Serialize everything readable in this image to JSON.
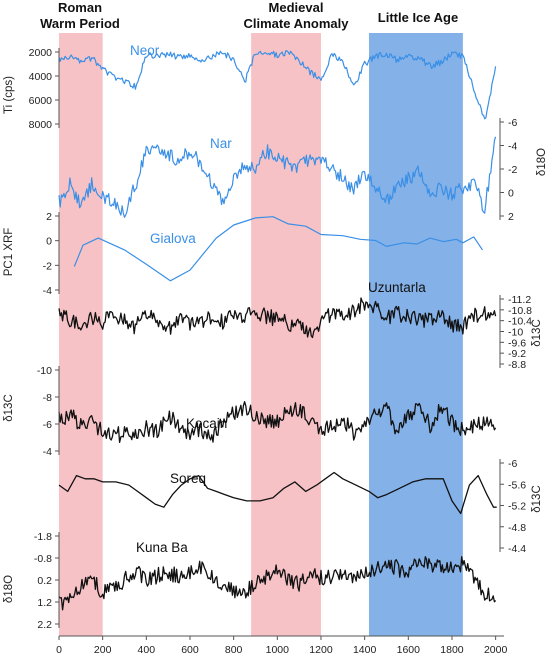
{
  "chart_data": {
    "type": "line",
    "periods": [
      {
        "name": "Roman Warm Period",
        "title_lines": [
          "Roman",
          "Warm Period"
        ],
        "start": 0,
        "end": 200,
        "color": "#f7c2c6"
      },
      {
        "name": "Medieval Climate Anomaly",
        "title_lines": [
          "Medieval",
          "Climate Anomaly"
        ],
        "start": 880,
        "end": 1200,
        "color": "#f7c2c6"
      },
      {
        "name": "Little Ice Age",
        "title_lines": [
          "Little Ice Age"
        ],
        "start": 1420,
        "end": 1850,
        "color": "#6fa3e3"
      }
    ],
    "x": {
      "ticks": [
        0,
        200,
        400,
        600,
        800,
        1000,
        1200,
        1400,
        1600,
        1800,
        2000
      ],
      "range": [
        0,
        2020
      ]
    },
    "series": [
      {
        "name": "Neor",
        "label": "Neor",
        "color": "#3a8fe6",
        "axis_title": "Ti (cps)",
        "axis_side": "left",
        "ticks": [
          "2000",
          "4000",
          "6000",
          "8000"
        ],
        "range": [
          1000,
          9600
        ],
        "inverted": true,
        "x": [
          0,
          50,
          100,
          150,
          200,
          250,
          300,
          350,
          400,
          450,
          500,
          550,
          600,
          650,
          700,
          750,
          800,
          850,
          900,
          950,
          1000,
          1050,
          1100,
          1150,
          1200,
          1250,
          1300,
          1350,
          1400,
          1450,
          1500,
          1550,
          1600,
          1650,
          1700,
          1750,
          1800,
          1850,
          1900,
          1950,
          2000
        ],
        "y": [
          2600,
          2200,
          2800,
          2400,
          3400,
          4300,
          4700,
          5200,
          2100,
          2200,
          2000,
          2300,
          2100,
          2700,
          2200,
          1900,
          2500,
          4800,
          1900,
          1700,
          2100,
          1800,
          2600,
          3800,
          4500,
          2000,
          2600,
          5200,
          3000,
          2200,
          2000,
          2600,
          2200,
          2400,
          3200,
          2800,
          2000,
          2200,
          5400,
          8600,
          3200
        ],
        "noise": 300
      },
      {
        "name": "Nar",
        "label": "Nar",
        "color": "#3a8fe6",
        "axis_title": "δ18O",
        "axis_side": "right",
        "ticks": [
          "-6",
          "-4",
          "-2",
          "0",
          "2"
        ],
        "range": [
          -6.5,
          2.5
        ],
        "inverted": true,
        "x": [
          0,
          50,
          100,
          150,
          200,
          250,
          300,
          350,
          400,
          450,
          500,
          550,
          600,
          650,
          700,
          750,
          800,
          850,
          900,
          950,
          1000,
          1050,
          1100,
          1150,
          1200,
          1250,
          1300,
          1350,
          1400,
          1450,
          1500,
          1550,
          1600,
          1650,
          1700,
          1750,
          1800,
          1850,
          1900,
          1950,
          2000
        ],
        "y": [
          0.8,
          -0.8,
          1.2,
          -0.8,
          0.2,
          1.0,
          1.6,
          -0.6,
          -3.6,
          -4.2,
          -3.2,
          -2.8,
          -3.6,
          -2.6,
          -0.8,
          0.6,
          -1.2,
          -2.4,
          -2.0,
          -3.6,
          -3.0,
          -2.4,
          -2.2,
          -3.0,
          -2.6,
          -2.2,
          -1.2,
          -0.4,
          -1.6,
          -0.6,
          0.8,
          -0.6,
          -1.2,
          -1.8,
          0.0,
          -0.4,
          0.2,
          -0.4,
          -0.8,
          1.4,
          -4.8
        ],
        "noise": 0.6
      },
      {
        "name": "Gialova",
        "label": "Gialova",
        "color": "#3a8fe6",
        "axis_title": "PC1 XRF",
        "axis_side": "left",
        "ticks": [
          "2",
          "0",
          "-2",
          "-4"
        ],
        "range": [
          -4.4,
          2.6
        ],
        "inverted": false,
        "x": [
          70,
          110,
          180,
          300,
          400,
          510,
          600,
          720,
          800,
          900,
          980,
          1050,
          1130,
          1200,
          1300,
          1380,
          1450,
          1500,
          1580,
          1640,
          1700,
          1760,
          1820,
          1850,
          1900,
          1940
        ],
        "y": [
          -2.0,
          -0.2,
          0.4,
          -0.6,
          -1.8,
          -3.2,
          -2.3,
          0.4,
          1.5,
          2.1,
          2.2,
          1.6,
          1.4,
          0.7,
          0.6,
          0.3,
          0.2,
          -0.3,
          0.0,
          -0.1,
          0.4,
          0.1,
          0.3,
          0.0,
          0.5,
          -0.6
        ],
        "noise": 0
      },
      {
        "name": "Uzuntarla",
        "label": "Uzuntarla",
        "color": "#111111",
        "axis_title": "δ13C",
        "axis_side": "right",
        "ticks": [
          "-11.2",
          "-10.8",
          "-10.4",
          "-10",
          "-9.6",
          "-9.2",
          "-8.8"
        ],
        "range": [
          -11.5,
          -8.6
        ],
        "inverted": true,
        "x": [
          0,
          50,
          100,
          150,
          200,
          250,
          300,
          350,
          400,
          450,
          500,
          550,
          600,
          650,
          700,
          750,
          800,
          850,
          900,
          950,
          1000,
          1050,
          1100,
          1150,
          1200,
          1250,
          1300,
          1350,
          1400,
          1450,
          1500,
          1550,
          1600,
          1650,
          1700,
          1750,
          1800,
          1850,
          1900,
          1950,
          2000
        ],
        "y": [
          -10.5,
          -10.4,
          -10.2,
          -10.4,
          -10.3,
          -10.5,
          -10.3,
          -10.1,
          -10.6,
          -10.3,
          -10.0,
          -10.5,
          -10.2,
          -10.3,
          -10.4,
          -10.3,
          -10.6,
          -10.5,
          -10.7,
          -10.5,
          -10.4,
          -10.2,
          -10.1,
          -9.8,
          -10.3,
          -10.6,
          -10.5,
          -10.7,
          -11.0,
          -10.8,
          -10.4,
          -10.6,
          -10.5,
          -10.3,
          -10.4,
          -10.5,
          -10.2,
          -10.1,
          -10.5,
          -10.6,
          -10.5
        ],
        "noise": 0.3
      },
      {
        "name": "Kocain",
        "label": "Kocain",
        "color": "#111111",
        "axis_title": "δ13C",
        "axis_side": "left",
        "ticks": [
          "-10",
          "-8",
          "-6",
          "-4"
        ],
        "range": [
          -10.2,
          -3.2
        ],
        "inverted": true,
        "x": [
          0,
          50,
          100,
          150,
          200,
          250,
          300,
          350,
          400,
          450,
          500,
          550,
          600,
          650,
          700,
          750,
          800,
          850,
          900,
          950,
          1000,
          1050,
          1100,
          1150,
          1200,
          1250,
          1300,
          1350,
          1400,
          1450,
          1500,
          1550,
          1600,
          1650,
          1700,
          1750,
          1800,
          1850,
          1900,
          1950,
          2000
        ],
        "y": [
          -6.2,
          -6.6,
          -5.8,
          -6.0,
          -5.4,
          -5.0,
          -5.2,
          -5.0,
          -5.6,
          -5.3,
          -6.6,
          -5.8,
          -5.2,
          -5.5,
          -5.0,
          -6.0,
          -6.6,
          -7.0,
          -6.5,
          -6.2,
          -6.0,
          -6.8,
          -7.0,
          -6.0,
          -5.4,
          -5.6,
          -6.3,
          -5.2,
          -5.8,
          -6.8,
          -7.2,
          -5.0,
          -6.6,
          -7.0,
          -5.8,
          -7.2,
          -6.0,
          -5.4,
          -5.8,
          -6.0,
          -5.6
        ],
        "noise": 0.6
      },
      {
        "name": "Soreq",
        "label": "Soreq",
        "color": "#111111",
        "axis_title": "δ13C",
        "axis_side": "right",
        "ticks": [
          "-6",
          "-5.6",
          "-5.2",
          "-4.8",
          "-4.4"
        ],
        "range": [
          -6.1,
          -4.2
        ],
        "inverted": true,
        "x": [
          0,
          40,
          80,
          120,
          160,
          200,
          260,
          320,
          360,
          400,
          440,
          480,
          520,
          560,
          600,
          640,
          680,
          720,
          760,
          800,
          860,
          920,
          980,
          1030,
          1080,
          1130,
          1180,
          1220,
          1260,
          1300,
          1360,
          1420,
          1460,
          1500,
          1560,
          1620,
          1680,
          1720,
          1760,
          1800,
          1840,
          1880,
          1920,
          1960,
          1990,
          2005
        ],
        "y": [
          -5.4,
          -5.2,
          -5.7,
          -5.6,
          -5.6,
          -5.5,
          -5.5,
          -5.4,
          -5.2,
          -5.0,
          -4.8,
          -4.7,
          -5.1,
          -5.4,
          -5.6,
          -5.7,
          -5.3,
          -5.2,
          -5.1,
          -5.0,
          -4.9,
          -4.9,
          -5.0,
          -5.3,
          -5.5,
          -5.2,
          -5.4,
          -5.6,
          -5.8,
          -5.6,
          -5.4,
          -5.2,
          -5.0,
          -5.1,
          -5.3,
          -5.5,
          -5.6,
          -5.6,
          -5.6,
          -4.9,
          -4.5,
          -5.4,
          -5.7,
          -5.1,
          -4.7,
          -4.7
        ],
        "noise": 0
      },
      {
        "name": "Kuna Ba",
        "label": "Kuna Ba",
        "color": "#111111",
        "axis_title": "δ18O",
        "axis_side": "left",
        "ticks": [
          "-1.8",
          "-0.8",
          "0.2",
          "1.2",
          "2.2"
        ],
        "range": [
          -2.0,
          2.6
        ],
        "inverted": true,
        "x": [
          0,
          50,
          100,
          150,
          200,
          250,
          300,
          350,
          400,
          450,
          500,
          550,
          600,
          650,
          700,
          750,
          800,
          850,
          900,
          950,
          1000,
          1050,
          1100,
          1150,
          1200,
          1250,
          1300,
          1350,
          1400,
          1450,
          1500,
          1550,
          1600,
          1650,
          1700,
          1750,
          1800,
          1850,
          1900,
          1950,
          2000
        ],
        "y": [
          1.6,
          1.2,
          0.8,
          0.4,
          1.0,
          0.8,
          0.4,
          0.0,
          0.4,
          0.2,
          0.0,
          0.3,
          0.0,
          -0.2,
          0.2,
          0.8,
          0.9,
          1.0,
          0.6,
          0.3,
          0.0,
          0.4,
          0.6,
          0.2,
          0.3,
          0.2,
          0.0,
          0.3,
          0.0,
          -0.2,
          -0.4,
          -0.2,
          0.1,
          -0.6,
          -0.4,
          -0.2,
          -0.1,
          -0.4,
          0.3,
          1.0,
          1.4
        ],
        "noise": 0.4
      }
    ]
  }
}
